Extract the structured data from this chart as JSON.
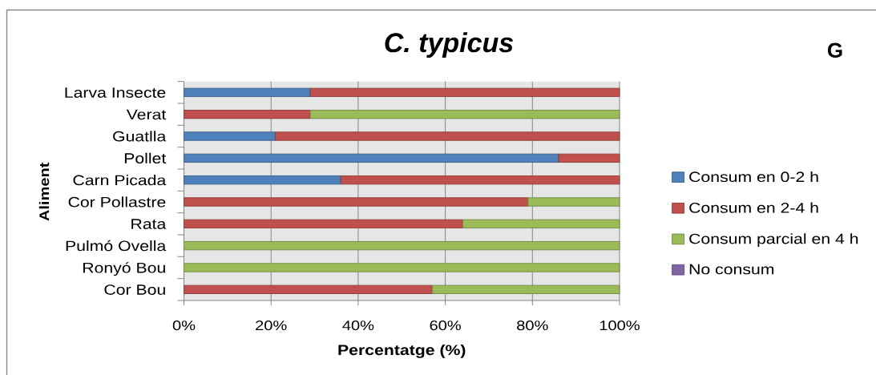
{
  "chart_data": {
    "type": "bar",
    "orientation": "horizontal",
    "stacked": true,
    "title": "C. typicus",
    "annotations": [
      "G"
    ],
    "xlabel": "Percentatge (%)",
    "ylabel": "Aliment",
    "categories": [
      "Larva Insecte",
      "Verat",
      "Guatlla",
      "Pollet",
      "Carn Picada",
      "Cor Pollastre",
      "Rata",
      "Pulmó Ovella",
      "Ronyó Bou",
      "Cor Bou"
    ],
    "series": [
      {
        "name": "Consum en 0-2 h",
        "color": "#4f81bd",
        "values": [
          29,
          0,
          21,
          86,
          36,
          0,
          0,
          0,
          0,
          0
        ]
      },
      {
        "name": "Consum en 2-4 h",
        "color": "#c0504d",
        "values": [
          71,
          29,
          79,
          14,
          64,
          79,
          64,
          0,
          0,
          57
        ]
      },
      {
        "name": "Consum parcial en 4 h",
        "color": "#9bbb59",
        "values": [
          0,
          71,
          0,
          0,
          0,
          21,
          36,
          100,
          100,
          43
        ]
      },
      {
        "name": "No consum",
        "color": "#8064a2",
        "values": [
          0,
          0,
          0,
          0,
          0,
          0,
          0,
          0,
          0,
          0
        ]
      }
    ],
    "xlim": [
      0,
      100
    ],
    "xticks": [
      {
        "value": 0,
        "label": "0%"
      },
      {
        "value": 20,
        "label": "20%"
      },
      {
        "value": 40,
        "label": "40%"
      },
      {
        "value": 60,
        "label": "60%"
      },
      {
        "value": 80,
        "label": "80%"
      },
      {
        "value": 100,
        "label": "100%"
      }
    ],
    "grid": "x",
    "legend": "right"
  }
}
